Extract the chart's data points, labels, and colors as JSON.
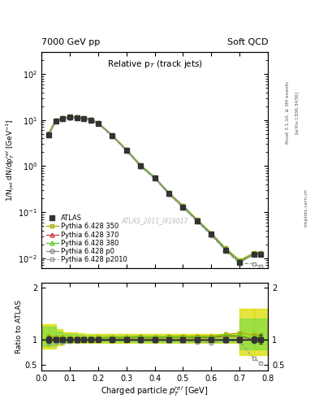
{
  "top_left_label": "7000 GeV pp",
  "top_right_label": "Soft QCD",
  "title_inside": "Relative p$_T$ (track jets)",
  "xlabel": "Charged particle $p_T^{rel}$ [GeV]",
  "ylabel": "1/N$_{jet}$ dN/dp$_T^{rel}$ [GeV$^{-1}$]",
  "ylabel_ratio": "Ratio to ATLAS",
  "watermark": "ATLAS_2011_I919017",
  "rivet_label": "Rivet 3.1.10, ≥ 3M events",
  "arxiv_label": "[arXiv:1306.3436]",
  "mcplots_label": "mcplots.cern.ch",
  "x_data": [
    0.025,
    0.05,
    0.075,
    0.1,
    0.125,
    0.15,
    0.175,
    0.2,
    0.25,
    0.3,
    0.35,
    0.4,
    0.45,
    0.5,
    0.55,
    0.6,
    0.65,
    0.7,
    0.75,
    0.775
  ],
  "atlas_y": [
    4.8,
    9.5,
    10.8,
    11.5,
    11.2,
    10.8,
    10.0,
    8.5,
    4.5,
    2.2,
    1.0,
    0.55,
    0.25,
    0.13,
    0.065,
    0.033,
    0.015,
    0.008,
    0.012,
    0.012
  ],
  "atlas_yerr": [
    0.3,
    0.4,
    0.4,
    0.5,
    0.5,
    0.4,
    0.4,
    0.35,
    0.2,
    0.09,
    0.04,
    0.022,
    0.01,
    0.005,
    0.003,
    0.0014,
    0.0007,
    0.0004,
    0.0008,
    0.001
  ],
  "py350_y": [
    5.1,
    9.9,
    11.2,
    11.8,
    11.5,
    11.1,
    10.3,
    8.8,
    4.7,
    2.3,
    1.06,
    0.57,
    0.265,
    0.138,
    0.069,
    0.035,
    0.0165,
    0.009,
    0.013,
    0.013
  ],
  "py370_y": [
    4.9,
    9.65,
    11.0,
    11.6,
    11.35,
    10.95,
    10.15,
    8.65,
    4.6,
    2.26,
    1.03,
    0.565,
    0.258,
    0.134,
    0.067,
    0.034,
    0.016,
    0.0085,
    0.012,
    0.0125
  ],
  "py380_y": [
    4.95,
    9.7,
    11.05,
    11.65,
    11.4,
    11.0,
    10.2,
    8.7,
    4.62,
    2.28,
    1.04,
    0.57,
    0.26,
    0.135,
    0.068,
    0.0345,
    0.0162,
    0.0086,
    0.0122,
    0.013
  ],
  "pyp0_y": [
    4.7,
    9.3,
    10.65,
    11.35,
    11.1,
    10.7,
    9.95,
    8.45,
    4.48,
    2.18,
    0.99,
    0.545,
    0.248,
    0.128,
    0.064,
    0.0325,
    0.015,
    0.008,
    0.012,
    0.012
  ],
  "pyp2010_y": [
    4.5,
    9.0,
    10.3,
    11.1,
    10.85,
    10.5,
    9.75,
    8.3,
    4.38,
    2.14,
    0.97,
    0.53,
    0.242,
    0.125,
    0.062,
    0.031,
    0.0145,
    0.0077,
    0.0075,
    0.0065
  ],
  "color_atlas": "#333333",
  "color_350": "#aaaa00",
  "color_370": "#cc3333",
  "color_380": "#55cc22",
  "color_p0": "#888888",
  "color_p2010": "#999999",
  "color_band_350_outer": "#dddd00",
  "color_band_350_inner": "#cccc00",
  "color_band_380_outer": "#88dd44",
  "color_band_380_inner": "#66cc33",
  "xlim": [
    0.0,
    0.8
  ],
  "ylim_main": [
    0.006,
    300
  ],
  "ylim_ratio": [
    0.4,
    2.1
  ],
  "ratio_yticks": [
    0.5,
    1.0,
    2.0
  ],
  "ratio_ytick_labels": [
    "0.5",
    "1",
    "2"
  ],
  "band_x_edges": [
    0.0,
    0.025,
    0.05,
    0.075,
    0.1,
    0.125,
    0.15,
    0.175,
    0.2,
    0.25,
    0.3,
    0.35,
    0.4,
    0.45,
    0.5,
    0.55,
    0.6,
    0.65,
    0.7,
    0.75,
    0.8
  ],
  "band_350_lo": [
    0.82,
    0.82,
    0.88,
    0.93,
    0.94,
    0.94,
    0.94,
    0.94,
    0.94,
    0.94,
    0.94,
    0.94,
    0.94,
    0.94,
    0.94,
    0.94,
    0.94,
    0.94,
    0.7,
    0.7
  ],
  "band_350_hi": [
    1.3,
    1.3,
    1.2,
    1.14,
    1.14,
    1.12,
    1.1,
    1.1,
    1.1,
    1.1,
    1.1,
    1.1,
    1.1,
    1.1,
    1.1,
    1.1,
    1.1,
    1.1,
    1.6,
    1.6
  ],
  "band_380_lo": [
    0.87,
    0.87,
    0.91,
    0.94,
    0.95,
    0.95,
    0.95,
    0.95,
    0.95,
    0.95,
    0.95,
    0.95,
    0.95,
    0.95,
    0.95,
    0.95,
    0.95,
    0.95,
    0.8,
    0.8
  ],
  "band_380_hi": [
    1.25,
    1.25,
    1.16,
    1.11,
    1.11,
    1.09,
    1.08,
    1.08,
    1.08,
    1.08,
    1.08,
    1.08,
    1.08,
    1.08,
    1.08,
    1.08,
    1.08,
    1.08,
    1.4,
    1.4
  ]
}
